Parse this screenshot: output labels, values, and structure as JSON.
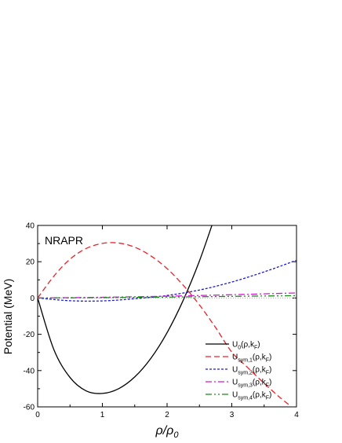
{
  "chart_data": {
    "type": "line",
    "panel_label": "NRAPR",
    "xlabel": {
      "main": "ρ/ρ",
      "sub": "0"
    },
    "ylabel": "Potential (MeV)",
    "xlim": [
      0,
      4
    ],
    "ylim": [
      -60,
      40
    ],
    "x_ticks": [
      "0",
      "1",
      "2",
      "3",
      "4"
    ],
    "y_ticks": [
      "-60",
      "-40",
      "-20",
      "0",
      "20",
      "40"
    ],
    "grid": false,
    "legend_position": "bottom-right",
    "series": [
      {
        "id": "u0",
        "label_main": "U",
        "label_sub": "0",
        "label_tail": "(ρ,k",
        "label_sub2": "F",
        "label_end": ")",
        "color": "#000000",
        "dash": "",
        "x": [
          0,
          0.25,
          0.5,
          0.75,
          1.0,
          1.25,
          1.5,
          1.75,
          2.0,
          2.25,
          2.5,
          2.75,
          2.85
        ],
        "y": [
          0,
          -28.4,
          -43.8,
          -51.2,
          -52.6,
          -50.0,
          -43.5,
          -33.2,
          -19.1,
          -1.2,
          20.4,
          45.9,
          55.0
        ]
      },
      {
        "id": "usym1",
        "label_main": "U",
        "label_sub": "sym,1",
        "label_tail": "(ρ,k",
        "label_sub2": "F",
        "label_end": ")",
        "color": "#e8202a",
        "dash": "7,4",
        "x": [
          0,
          0.25,
          0.5,
          0.75,
          1.0,
          1.25,
          1.5,
          1.75,
          2.0,
          2.25,
          2.5,
          2.75,
          3.0,
          3.25,
          3.5,
          3.75,
          4.0
        ],
        "y": [
          0,
          12.0,
          21.4,
          27.3,
          30.1,
          30.3,
          28.0,
          23.2,
          16.2,
          7.0,
          -3.8,
          -16.3,
          -29.8,
          -38.5,
          -47.0,
          -55.0,
          -62.0
        ]
      },
      {
        "id": "usym2",
        "label_main": "U",
        "label_sub": "sym,2",
        "label_tail": "(ρ,k",
        "label_sub2": "F",
        "label_end": ")",
        "color": "#1a1ad0",
        "dash": "3,2",
        "x": [
          0,
          0.5,
          1.0,
          1.5,
          2.0,
          2.5,
          3.0,
          3.5,
          4.0
        ],
        "y": [
          0,
          -1.5,
          -1.6,
          -0.4,
          1.4,
          4.4,
          8.8,
          14.4,
          20.8
        ]
      },
      {
        "id": "usym3",
        "label_main": "U",
        "label_sub": "sym,3",
        "label_tail": "(ρ,k",
        "label_sub2": "F",
        "label_end": ")",
        "color": "#d21ad2",
        "dash": "8,3,2,3",
        "x": [
          0,
          1.0,
          2.0,
          3.0,
          4.0
        ],
        "y": [
          0,
          0.4,
          1.0,
          1.8,
          2.8
        ]
      },
      {
        "id": "usym4",
        "label_main": "U",
        "label_sub": "sym,4",
        "label_tail": "(ρ,k",
        "label_sub2": "F",
        "label_end": ")",
        "color": "#1a8a1a",
        "dash": "8,3,2,3,2,3",
        "x": [
          0,
          1.0,
          2.0,
          3.0,
          4.0
        ],
        "y": [
          0,
          0.2,
          0.5,
          0.9,
          1.3
        ]
      }
    ]
  }
}
